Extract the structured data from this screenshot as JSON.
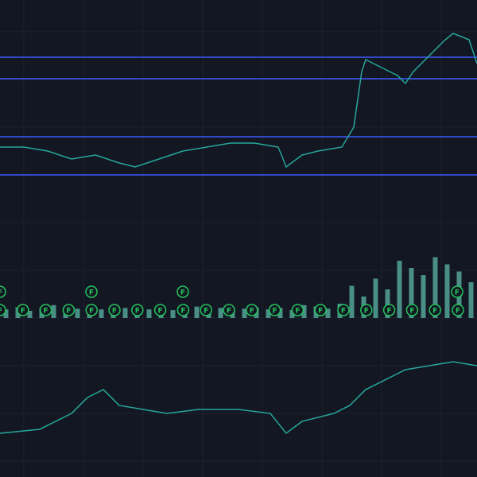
{
  "chart_data": [
    {
      "type": "line",
      "color": "#26a69a",
      "x": [
        0,
        6,
        12,
        18,
        24,
        30,
        34,
        40,
        46,
        52,
        58,
        64,
        70,
        72,
        76,
        80,
        86,
        89,
        91,
        92,
        96,
        100,
        102,
        104,
        108,
        112,
        114,
        118,
        120
      ],
      "values": [
        22.5,
        22.5,
        20,
        15,
        17.5,
        12.5,
        10,
        15,
        20,
        22.5,
        25,
        25,
        22.5,
        10,
        17.5,
        20,
        22.5,
        35,
        70,
        77.5,
        72.5,
        67.5,
        62.5,
        70,
        80,
        90,
        94,
        90,
        75
      ],
      "xlim": [
        0,
        120
      ],
      "ylim": [
        0,
        100
      ],
      "levels": [
        79,
        65.5,
        29,
        5
      ],
      "level_color": "#3d5afe"
    },
    {
      "type": "bar",
      "color": "#4a8f86",
      "values": [
        12,
        15,
        10,
        14,
        18,
        11,
        13,
        16,
        12,
        10,
        14,
        17,
        12,
        15,
        11,
        13,
        16,
        12,
        14,
        10,
        13,
        15,
        12,
        14,
        11,
        18,
        16,
        13,
        20,
        45,
        30,
        55,
        40,
        80,
        70,
        60,
        85,
        75,
        65,
        50
      ],
      "ylim": [
        0,
        100
      ]
    },
    {
      "type": "line",
      "color": "#26a69a",
      "x": [
        0,
        10,
        18,
        22,
        26,
        30,
        36,
        42,
        50,
        60,
        68,
        72,
        76,
        84,
        88,
        92,
        100,
        102,
        108,
        114,
        120
      ],
      "values": [
        12.5,
        16.7,
        33.3,
        50,
        58.3,
        41.7,
        37.5,
        33.3,
        37.5,
        37.5,
        33.3,
        12.5,
        25,
        33.3,
        41.7,
        58.3,
        75,
        79.2,
        83.3,
        87.5,
        83.3
      ],
      "xlim": [
        0,
        120
      ],
      "ylim": [
        0,
        100
      ]
    }
  ],
  "markers": {
    "label": "F"
  }
}
